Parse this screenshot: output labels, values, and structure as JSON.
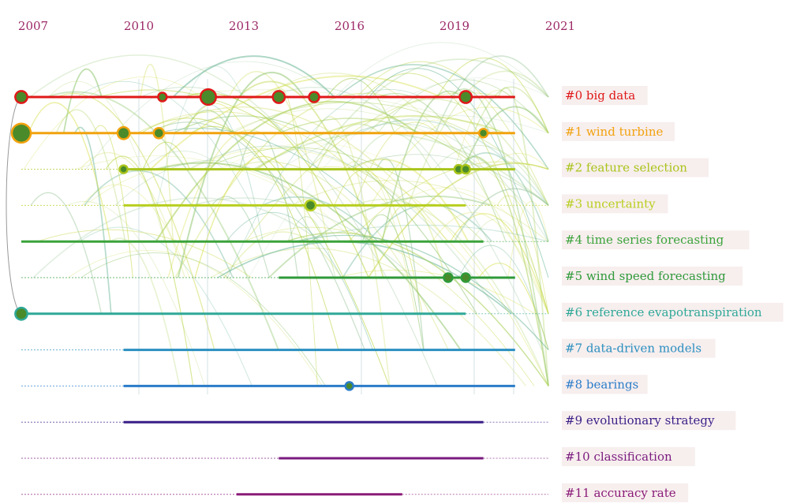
{
  "years": [
    "2007",
    "2010",
    "2013",
    "2016",
    "2019",
    "2021"
  ],
  "clusters": [
    {
      "id": "#0",
      "label": "big data",
      "color": "#e01818",
      "start": 2007,
      "end": 2021,
      "nodes": [
        [
          2007,
          2
        ],
        [
          2011,
          1
        ],
        [
          2012.3,
          3
        ],
        [
          2014.3,
          2
        ],
        [
          2015.3,
          1.5
        ],
        [
          2019.6,
          2
        ]
      ]
    },
    {
      "id": "#1",
      "label": "wind turbine",
      "color": "#f2a20d",
      "start": 2007,
      "end": 2021,
      "nodes": [
        [
          2007,
          4
        ],
        [
          2009.9,
          2
        ],
        [
          2010.9,
          1.5
        ],
        [
          2020.1,
          1
        ]
      ]
    },
    {
      "id": "#2",
      "label": "feature selection",
      "color": "#a9c41a",
      "start": 2009.9,
      "end": 2021,
      "nodes": [
        [
          2009.9,
          0.8
        ],
        [
          2019.4,
          1
        ],
        [
          2019.6,
          1
        ]
      ]
    },
    {
      "id": "#3",
      "label": "uncertainty",
      "color": "#b7cf1f",
      "start": 2009.9,
      "end": 2019.6,
      "nodes": [
        [
          2015.2,
          1.5
        ]
      ]
    },
    {
      "id": "#4",
      "label": "time series forecasting",
      "color": "#3aa33a",
      "start": 2007,
      "end": 2020.1,
      "nodes": []
    },
    {
      "id": "#5",
      "label": "wind speed forecasting",
      "color": "#2f9a3a",
      "start": 2014.3,
      "end": 2021,
      "nodes": [
        [
          2019.1,
          1
        ],
        [
          2019.6,
          1
        ]
      ]
    },
    {
      "id": "#6",
      "label": "reference evapotranspiration",
      "color": "#2fa898",
      "start": 2007,
      "end": 2019.6,
      "nodes": [
        [
          2007,
          2
        ]
      ]
    },
    {
      "id": "#7",
      "label": "data-driven models",
      "color": "#2a8fc0",
      "start": 2009.9,
      "end": 2021,
      "nodes": []
    },
    {
      "id": "#8",
      "label": "bearings",
      "color": "#2a7cc9",
      "start": 2009.9,
      "end": 2021,
      "nodes": [
        [
          2016.3,
          0.8
        ]
      ]
    },
    {
      "id": "#9",
      "label": "evolutionary strategy",
      "color": "#3a1e87",
      "start": 2009.9,
      "end": 2020.1,
      "nodes": []
    },
    {
      "id": "#10",
      "label": "classification",
      "color": "#7a1b7e",
      "start": 2014.3,
      "end": 2020.1,
      "nodes": []
    },
    {
      "id": "#11",
      "label": "accuracy rate",
      "color": "#8a1b78",
      "start": 2013.1,
      "end": 2017.8,
      "nodes": []
    }
  ]
}
